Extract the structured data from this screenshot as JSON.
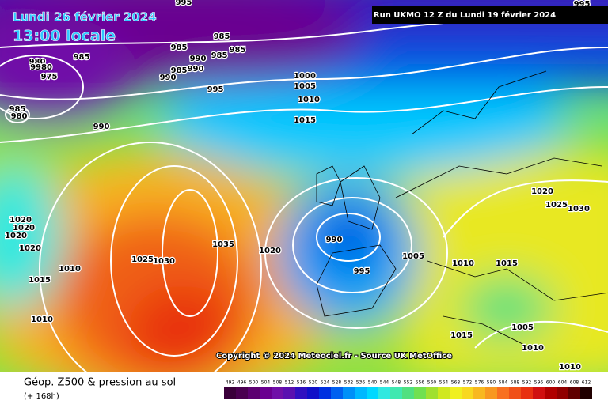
{
  "header": {
    "date": "Lundi 26 février 2024",
    "time": "13:00 locale",
    "run": "Run UKMO 12 Z du Lundi 19 février 2024"
  },
  "copyright": "Copyright © 2024 Meteociel.fr - Source UK MetOffice",
  "legend": {
    "title": "Géop. Z500 & pression au sol",
    "subtitle": "(+ 168h)",
    "levels": [
      492,
      496,
      500,
      504,
      508,
      512,
      516,
      520,
      524,
      528,
      532,
      536,
      540,
      544,
      548,
      552,
      556,
      560,
      564,
      568,
      572,
      576,
      580,
      584,
      588,
      592,
      596,
      600,
      604,
      608,
      612
    ],
    "colors": [
      "#3a003a",
      "#4a0050",
      "#5c0070",
      "#6a0090",
      "#7010a8",
      "#5a10b0",
      "#3010c0",
      "#1010c8",
      "#0030e0",
      "#0060f0",
      "#0090f8",
      "#00b8ff",
      "#00d8ff",
      "#30e8e0",
      "#40e8b0",
      "#50e080",
      "#70e050",
      "#a0e030",
      "#d0e820",
      "#f0f020",
      "#f8d820",
      "#f8b820",
      "#f89820",
      "#f87020",
      "#f05018",
      "#e83010",
      "#d01010",
      "#b00000",
      "#900000",
      "#600000",
      "#200000"
    ]
  },
  "isobar_labels": [
    "995",
    "995",
    "985",
    "980",
    "9980",
    "975",
    "985",
    "980",
    "985",
    "985",
    "990",
    "985",
    "985",
    "990",
    "985",
    "990",
    "995",
    "1000",
    "1005",
    "1010",
    "1015",
    "990",
    "1020",
    "1020",
    "1020",
    "1020",
    "1010",
    "1015",
    "1010",
    "1025",
    "1030",
    "1035",
    "1020",
    "990",
    "995",
    "1005",
    "1010",
    "1015",
    "1020",
    "1025",
    "1030",
    "1005",
    "1010",
    "1015",
    "1010"
  ]
}
